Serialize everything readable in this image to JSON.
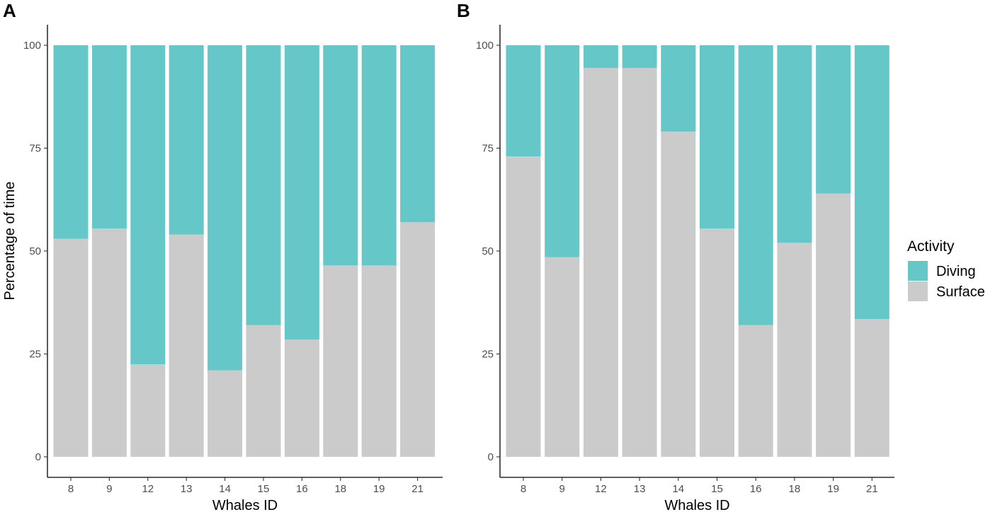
{
  "chart_data": [
    {
      "panel": "A",
      "type": "bar",
      "stacked": true,
      "percent": true,
      "categories": [
        "8",
        "9",
        "12",
        "13",
        "14",
        "15",
        "16",
        "18",
        "19",
        "21"
      ],
      "series": [
        {
          "name": "Surface",
          "color": "#cccbcb",
          "values": [
            53,
            55.5,
            22.5,
            54,
            21,
            32,
            28.5,
            46.5,
            46.5,
            57
          ]
        },
        {
          "name": "Diving",
          "color": "#66c7c9",
          "values": [
            47,
            44.5,
            77.5,
            46,
            79,
            68,
            71.5,
            53.5,
            53.5,
            43
          ]
        }
      ],
      "xlabel": "Whales ID",
      "ylabel": "Percentage of time",
      "ylim": [
        0,
        100
      ],
      "yticks": [
        "0",
        "25",
        "50",
        "75",
        "100"
      ]
    },
    {
      "panel": "B",
      "type": "bar",
      "stacked": true,
      "percent": true,
      "categories": [
        "8",
        "9",
        "12",
        "13",
        "14",
        "15",
        "16",
        "18",
        "19",
        "21"
      ],
      "series": [
        {
          "name": "Surface",
          "color": "#cccbcb",
          "values": [
            73,
            48.5,
            94.5,
            94.5,
            79,
            55.5,
            32,
            52,
            64,
            33.5
          ]
        },
        {
          "name": "Diving",
          "color": "#66c7c9",
          "values": [
            27,
            51.5,
            5.5,
            5.5,
            21,
            44.5,
            68,
            48,
            36,
            66.5
          ]
        }
      ],
      "xlabel": "Whales ID",
      "ylabel": "",
      "ylim": [
        0,
        100
      ],
      "yticks": [
        "0",
        "25",
        "50",
        "75",
        "100"
      ]
    }
  ],
  "legend": {
    "title": "Activity",
    "items": [
      {
        "label": "Diving",
        "color": "#66c7c9"
      },
      {
        "label": "Surface",
        "color": "#cccbcb"
      }
    ]
  }
}
